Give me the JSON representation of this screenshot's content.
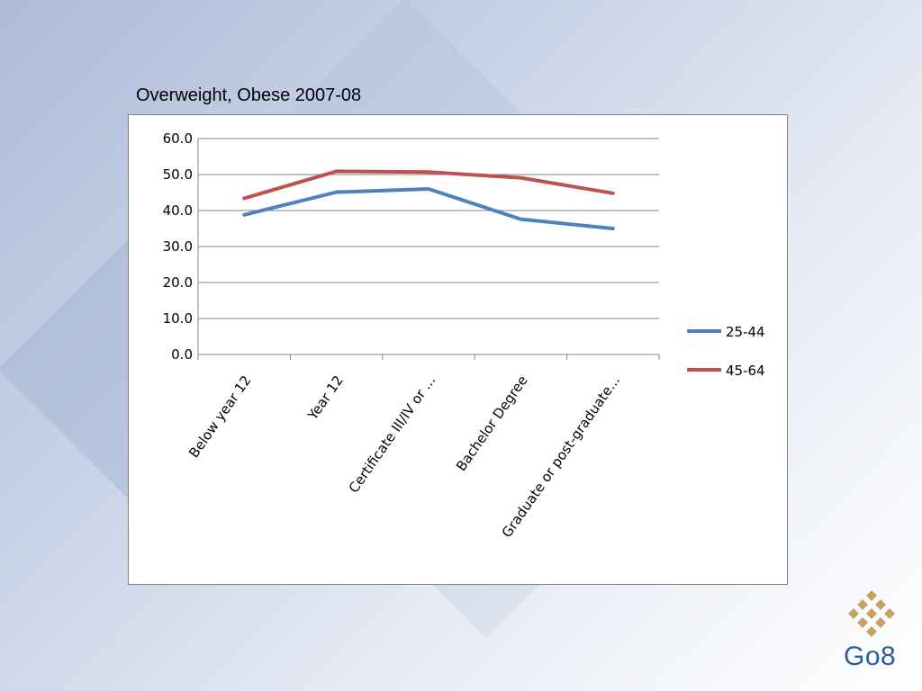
{
  "slide": {
    "title": "Overweight, Obese 2007-08",
    "logo_text": "Go8",
    "logo_color": "#c8a265"
  },
  "chart_data": {
    "type": "line",
    "title": "",
    "xlabel": "",
    "ylabel": "",
    "ylim": [
      0,
      60
    ],
    "yticks": [
      "0.0",
      "10.0",
      "20.0",
      "30.0",
      "40.0",
      "50.0",
      "60.0"
    ],
    "grid": true,
    "legend_position": "right",
    "categories": [
      "Below year 12",
      "Year 12",
      "Certificate III/IV or ...",
      "Bachelor Degree",
      "Graduate or post-graduate..."
    ],
    "series": [
      {
        "name": "25-44",
        "color": "#4f81bd",
        "values": [
          38.8,
          45.1,
          46.0,
          37.6,
          35.0
        ]
      },
      {
        "name": "45-64",
        "color": "#c0504d",
        "values": [
          43.4,
          50.9,
          50.7,
          49.1,
          44.8
        ]
      }
    ]
  }
}
